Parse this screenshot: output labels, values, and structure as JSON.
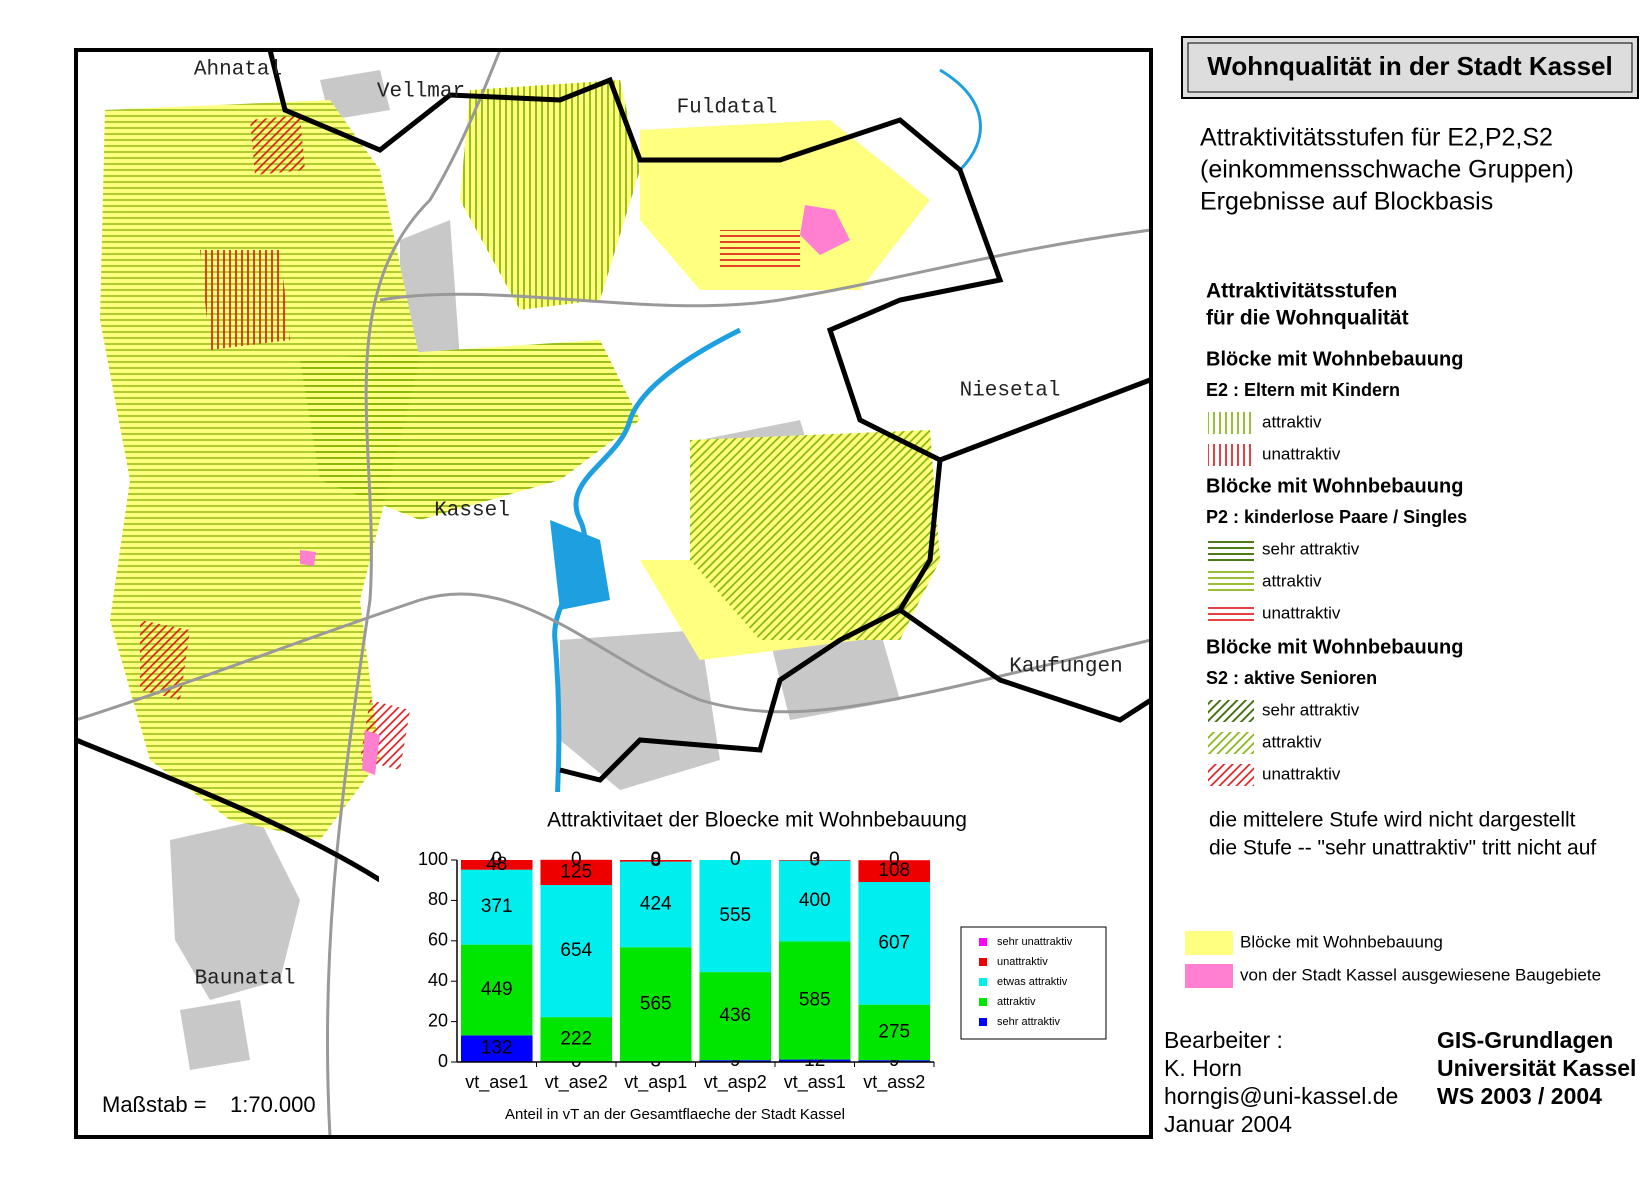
{
  "title": "Wohnqualität in der Stadt Kassel",
  "subtitle": [
    "Attraktivitätsstufen für E2,P2,S2",
    "(einkommensschwache Gruppen)",
    "Ergebnisse auf Blockbasis"
  ],
  "map": {
    "places": [
      "Ahnatal",
      "Vellmar",
      "Fuldatal",
      "Niesetal",
      "Kassel",
      "Kaufungen",
      "Baunatal"
    ],
    "scale_label": "Maßstab =",
    "scale": "1:70.000"
  },
  "legend": {
    "heading": [
      "Attraktivitätsstufen",
      "für die Wohnqualität"
    ],
    "groups": [
      {
        "heading": "Blöcke mit Wohnbebauung",
        "subheading": "E2 : Eltern mit Kindern",
        "items": [
          "attraktiv",
          "unattraktiv"
        ]
      },
      {
        "heading": "Blöcke mit Wohnbebauung",
        "subheading": "P2 : kinderlose Paare / Singles",
        "items": [
          "sehr attraktiv",
          "attraktiv",
          "unattraktiv"
        ]
      },
      {
        "heading": "Blöcke mit Wohnbebauung",
        "subheading": "S2 : aktive Senioren",
        "items": [
          "sehr attraktiv",
          "attraktiv",
          "unattraktiv"
        ]
      }
    ],
    "notes": [
      "die mittelere Stufe wird nicht dargestellt",
      "die Stufe -- \"sehr unattraktiv\" tritt nicht auf"
    ],
    "areas": [
      "Blöcke mit Wohnbebauung",
      "von der Stadt Kassel ausgewiesene Baugebiete"
    ]
  },
  "credits": {
    "author": [
      "Bearbeiter :",
      "K. Horn",
      "horngis@uni-kassel.de",
      "Januar 2004"
    ],
    "course": [
      "GIS-Grundlagen",
      "Universität Kassel",
      "WS 2003 / 2004"
    ]
  },
  "chart_data": {
    "type": "bar",
    "stacked": true,
    "title": "Attraktivitaet der Bloecke mit Wohnbebauung",
    "xlabel": "Anteil in vT an der Gesamtflaeche der Stadt Kassel",
    "categories": [
      "vt_ase1",
      "vt_ase2",
      "vt_asp1",
      "vt_asp2",
      "vt_ass1",
      "vt_ass2"
    ],
    "ylim": [
      0,
      100
    ],
    "yticks": [
      0,
      20,
      40,
      60,
      80,
      100
    ],
    "series": [
      {
        "name": "sehr attraktiv",
        "color": "#0000ff",
        "values": [
          13.2,
          0,
          0.3,
          0.9,
          1.2,
          0.9
        ],
        "value_labels": [
          "132",
          "0",
          "3",
          "9",
          "12",
          "9"
        ]
      },
      {
        "name": "attraktiv",
        "color": "#00e600",
        "values": [
          44.9,
          22.2,
          56.5,
          43.6,
          58.5,
          27.5
        ],
        "value_labels": [
          "449",
          "222",
          "565",
          "436",
          "585",
          "275"
        ]
      },
      {
        "name": "etwas attraktiv",
        "color": "#00eeee",
        "values": [
          37.1,
          65.4,
          42.4,
          55.5,
          40.0,
          60.7
        ],
        "value_labels": [
          "371",
          "654",
          "424",
          "555",
          "400",
          "607"
        ]
      },
      {
        "name": "unattraktiv",
        "color": "#ee0000",
        "values": [
          4.8,
          12.5,
          0.8,
          0,
          0.3,
          10.8
        ],
        "value_labels": [
          "48",
          "125",
          "8",
          "0",
          "3",
          "108"
        ]
      },
      {
        "name": "sehr unattraktiv",
        "color": "#ff00ff",
        "values": [
          0,
          0,
          0,
          0,
          0,
          0
        ],
        "value_labels": [
          "0",
          "0",
          "0",
          "0",
          "0",
          "0"
        ]
      }
    ],
    "legend_position": "right"
  }
}
